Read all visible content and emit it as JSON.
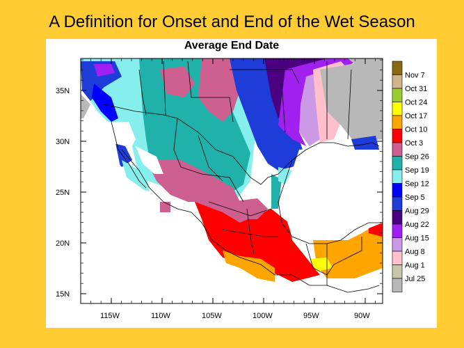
{
  "slide": {
    "title": "A Definition for Onset and End of the Wet Season"
  },
  "map": {
    "title": "Average End Date",
    "lat_ticks": [
      "35N",
      "30N",
      "25N",
      "20N",
      "15N"
    ],
    "lon_ticks": [
      "115W",
      "110W",
      "105W",
      "100W",
      "95W",
      "90W"
    ]
  },
  "legend": {
    "entries": [
      {
        "label": "Nov 7",
        "color": "#8B6914"
      },
      {
        "label": "Oct 31",
        "color": "#D2B48C"
      },
      {
        "label": "Oct 24",
        "color": "#9ACD32"
      },
      {
        "label": "Oct 17",
        "color": "#FFFF00"
      },
      {
        "label": "Oct 10",
        "color": "#FFA500"
      },
      {
        "label": "Oct 3",
        "color": "#FF0000"
      },
      {
        "label": "Sep 26",
        "color": "#CD6090"
      },
      {
        "label": "Sep 19",
        "color": "#20B2AA"
      },
      {
        "label": "Sep 12",
        "color": "#87EEEE"
      },
      {
        "label": "Sep 5",
        "color": "#0000FF"
      },
      {
        "label": "Aug 29",
        "color": "#1E3CD8"
      },
      {
        "label": "Aug 22",
        "color": "#4B0082"
      },
      {
        "label": "Aug 15",
        "color": "#A020F0"
      },
      {
        "label": "Aug 8",
        "color": "#CC99E6"
      },
      {
        "label": "Aug 1",
        "color": "#FFC0CB"
      },
      {
        "label": "Jul 25",
        "color": "#C8C8A8"
      },
      {
        "label": "",
        "color": "#B8B8B8"
      }
    ]
  },
  "colors": {
    "background": "#FFCC33",
    "ocean": "#FFFFFF",
    "nodata": "#B8B8B8",
    "border": "#000000"
  }
}
